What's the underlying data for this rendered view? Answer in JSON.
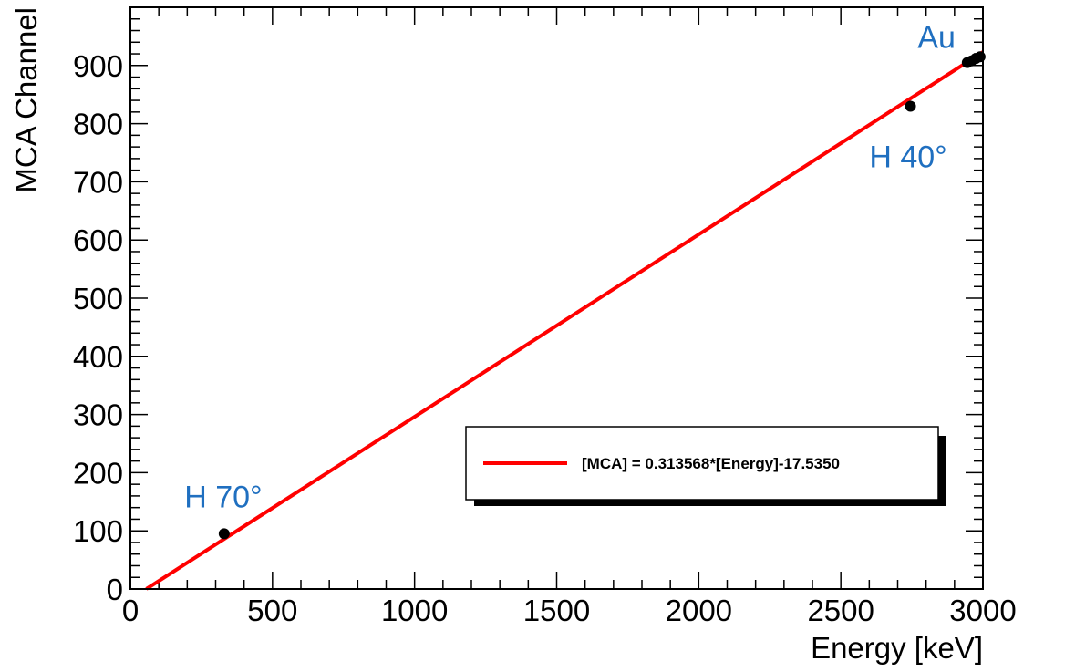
{
  "chart_data": {
    "type": "scatter",
    "title": "",
    "xlabel": "Energy [keV]",
    "ylabel": "MCA Channel",
    "xlim": [
      0,
      3000
    ],
    "ylim": [
      0,
      1000
    ],
    "x_ticks": [
      0,
      500,
      1000,
      1500,
      2000,
      2500,
      3000
    ],
    "y_ticks": [
      0,
      100,
      200,
      300,
      400,
      500,
      600,
      700,
      800,
      900
    ],
    "x_tick_labels": [
      "0",
      "500",
      "1000",
      "1500",
      "2000",
      "2500",
      "3000"
    ],
    "y_tick_labels": [
      "0",
      "100",
      "200",
      "300",
      "400",
      "500",
      "600",
      "700",
      "800",
      "900"
    ],
    "grid": false,
    "series": [
      {
        "kind": "points",
        "color": "#000000",
        "points": [
          {
            "x": 330,
            "y": 95
          },
          {
            "x": 2745,
            "y": 830
          },
          {
            "x": 2945,
            "y": 905
          },
          {
            "x": 2960,
            "y": 908
          },
          {
            "x": 2975,
            "y": 912
          },
          {
            "x": 2990,
            "y": 915
          }
        ]
      },
      {
        "kind": "fit-line",
        "color": "#ff0000",
        "slope": 0.313568,
        "intercept": -17.535,
        "x_range": [
          56,
          3000
        ]
      }
    ],
    "annotations": [
      {
        "text": "Au",
        "x": 2770,
        "y": 930,
        "color": "#1f6fc0"
      },
      {
        "text": "H 40°",
        "x": 2600,
        "y": 725,
        "color": "#1f6fc0"
      },
      {
        "text": "H 70°",
        "x": 190,
        "y": 140,
        "color": "#1f6fc0"
      }
    ],
    "legend": {
      "placement": "bottom-right",
      "entries": [
        {
          "label": "[MCA] = 0.313568*[Energy]-17.5350",
          "color": "#ff0000"
        }
      ]
    }
  }
}
